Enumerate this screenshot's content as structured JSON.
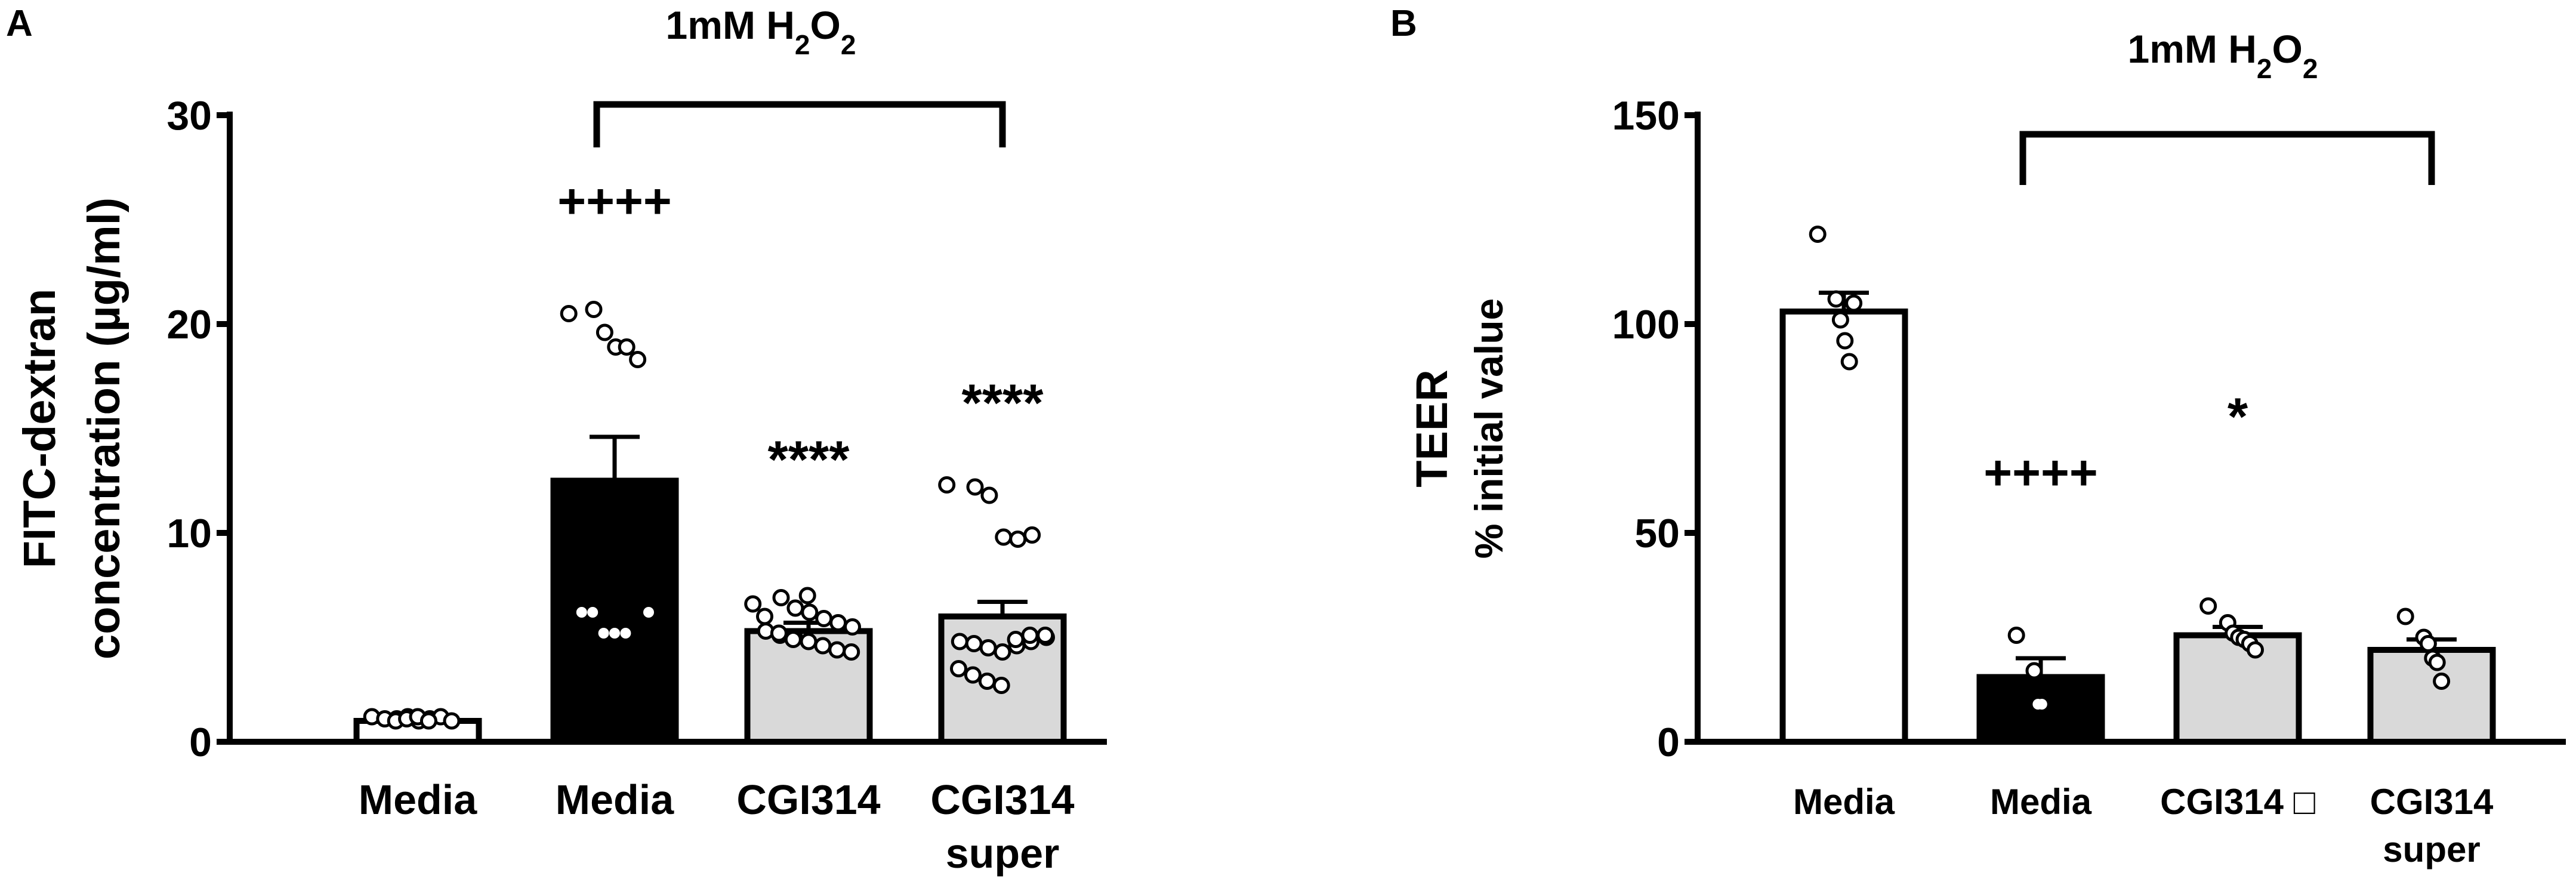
{
  "panels": [
    {
      "letter": "A",
      "treatment": {
        "base": "1mM H",
        "sub1": "2",
        "mid": "O",
        "sub2": "2"
      },
      "ylabel_lines": [
        "FITC-dextran",
        "concentration (µg/ml)"
      ]
    },
    {
      "letter": "B",
      "treatment": {
        "base": "1mM H",
        "sub1": "2",
        "mid": "O",
        "sub2": "2"
      },
      "ylabel_lines": [
        "TEER",
        "% initial value"
      ]
    }
  ],
  "chart_data": [
    {
      "type": "bar",
      "panel": "A",
      "title": "",
      "categories": [
        [
          "Media"
        ],
        [
          "Media"
        ],
        [
          "CGI314"
        ],
        [
          "CGI314",
          "super"
        ]
      ],
      "ylabel": "FITC-dextran concentration (µg/ml)",
      "ylim": [
        0,
        30
      ],
      "yticks": [
        0,
        10,
        20,
        30
      ],
      "grid": false,
      "values": [
        1.0,
        12.5,
        5.3,
        6.0
      ],
      "sem": [
        0.1,
        2.1,
        0.4,
        0.7
      ],
      "bar_colors": [
        "#ffffff",
        "#000000",
        "#d9d9d9",
        "#d9d9d9"
      ],
      "annotations": [
        "",
        "++++",
        "****",
        "****"
      ],
      "bracket": {
        "from_category": 1,
        "to_category": 3
      },
      "points": [
        [
          1.2,
          1.1,
          1.2,
          1.0,
          1.1,
          1.2,
          1.0,
          1.1,
          1.0,
          1.1,
          1.2,
          1.0
        ],
        [
          20.5,
          20.7,
          19.6,
          18.9,
          18.9,
          18.3,
          6.2,
          6.2,
          6.2,
          5.2,
          5.2,
          5.2
        ],
        [
          6.6,
          6.9,
          6.4,
          6.2,
          5.9,
          5.7,
          5.5,
          5.3,
          5.1,
          5.0,
          4.8,
          4.6,
          4.4,
          4.3,
          6.0,
          5.2,
          4.9,
          7.0
        ],
        [
          12.3,
          12.2,
          11.8,
          9.8,
          9.7,
          9.9,
          5.0,
          4.8,
          4.7,
          4.5,
          4.3,
          4.6,
          4.8,
          5.1,
          3.5,
          3.2,
          2.9,
          2.7,
          4.9,
          5.1
        ]
      ]
    },
    {
      "type": "bar",
      "panel": "B",
      "title": "",
      "categories": [
        [
          "Media"
        ],
        [
          "Media"
        ],
        [
          "CGI314 □"
        ],
        [
          "CGI314",
          "super"
        ]
      ],
      "ylabel": "TEER % initial value",
      "ylim": [
        0,
        150
      ],
      "yticks": [
        0,
        50,
        100,
        150
      ],
      "grid": false,
      "values": [
        103,
        15.5,
        25.5,
        22
      ],
      "sem": [
        4.5,
        4.5,
        2.0,
        2.5
      ],
      "bar_colors": [
        "#ffffff",
        "#000000",
        "#d9d9d9",
        "#d9d9d9"
      ],
      "annotations": [
        "",
        "++++",
        "*",
        ""
      ],
      "bracket": {
        "from_category": 1,
        "to_category": 3
      },
      "points": [
        [
          121.5,
          106,
          101,
          96,
          91,
          105
        ],
        [
          25.5,
          17,
          9,
          9
        ],
        [
          32.5,
          28.5,
          26,
          25,
          24.5,
          23.5,
          22
        ],
        [
          30,
          25,
          23.5,
          20,
          19,
          14.5
        ]
      ]
    }
  ]
}
